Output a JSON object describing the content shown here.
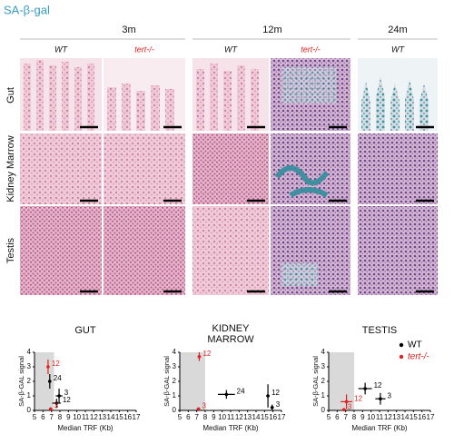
{
  "figure": {
    "title": "SA-β-gal",
    "ages": [
      "3m",
      "12m",
      "24m"
    ],
    "genotypes": [
      "WT",
      "tert-/-",
      "WT",
      "tert-/-",
      "WT"
    ],
    "tissues": [
      "Gut",
      "Kidney Marrow",
      "Testis"
    ]
  },
  "chart_data": [
    {
      "type": "scatter",
      "title": "GUT",
      "x_label": "Median TRF (Kb)",
      "y_label": "SA-β-GAL signal",
      "xlim": [
        5,
        17
      ],
      "xticks": [
        5,
        6,
        7,
        8,
        9,
        10,
        11,
        12,
        13,
        14,
        15,
        16,
        17
      ],
      "ylim": [
        0,
        4
      ],
      "yticks": [
        0,
        1,
        2,
        3,
        4
      ],
      "shade": [
        5,
        7.3
      ],
      "series": [
        {
          "color": "#000000",
          "x": [
            6.8,
            7.9,
            7.6
          ],
          "values": [
            2.0,
            1.0,
            0.5
          ],
          "xerr": [
            0.1,
            0.4,
            0.5
          ],
          "yerr": [
            0.5,
            0.5,
            0.3
          ],
          "point_labels": [
            "24",
            "3",
            "12"
          ]
        },
        {
          "color": "#e02020",
          "x": [
            6.6,
            6.9
          ],
          "values": [
            3.0,
            0.1
          ],
          "xerr": [
            0.1,
            0.2
          ],
          "yerr": [
            0.5,
            0.1
          ],
          "point_labels": [
            "12",
            "3"
          ]
        }
      ]
    },
    {
      "type": "scatter",
      "title": "KIDNEY MARROW",
      "x_label": "Median TRF (Kb)",
      "y_label": "SA-β-GAL signal",
      "xlim": [
        5,
        17
      ],
      "xticks": [
        5,
        6,
        7,
        8,
        9,
        10,
        11,
        12,
        13,
        14,
        15,
        16,
        17
      ],
      "ylim": [
        0,
        4
      ],
      "yticks": [
        0,
        1,
        2,
        3,
        4
      ],
      "shade": [
        5,
        8
      ],
      "series": [
        {
          "color": "#000000",
          "x": [
            10.5,
            15.4,
            15.9
          ],
          "values": [
            1.1,
            1.0,
            0.2
          ],
          "xerr": [
            1.0,
            0.2,
            0.2
          ],
          "yerr": [
            0.3,
            0.8,
            0.2
          ],
          "point_labels": [
            "24",
            "12",
            "3"
          ]
        },
        {
          "color": "#e02020",
          "x": [
            7.3,
            7.2
          ],
          "values": [
            3.7,
            0.1
          ],
          "xerr": [
            0.2,
            0.2
          ],
          "yerr": [
            0.3,
            0.1
          ],
          "point_labels": [
            "12",
            "3"
          ]
        }
      ]
    },
    {
      "type": "scatter",
      "title": "TESTIS",
      "x_label": "Median TRF (Kb)",
      "y_label": "SA-β-GAL signal",
      "xlim": [
        5,
        17
      ],
      "xticks": [
        5,
        6,
        7,
        8,
        9,
        10,
        11,
        12,
        13,
        14,
        15,
        16,
        17
      ],
      "ylim": [
        0,
        4
      ],
      "yticks": [
        0,
        1,
        2,
        3,
        4
      ],
      "shade": [
        5,
        8
      ],
      "series": [
        {
          "name": "WT",
          "color": "#000000",
          "x": [
            9.3,
            11.1
          ],
          "values": [
            1.5,
            0.8
          ],
          "xerr": [
            0.8,
            0.6
          ],
          "yerr": [
            0.4,
            0.4
          ],
          "point_labels": [
            "12",
            "3"
          ]
        },
        {
          "name": "tert-/-",
          "color": "#e02020",
          "x": [
            7.1,
            6.8
          ],
          "values": [
            0.6,
            0.05
          ],
          "xerr": [
            0.7,
            0.2
          ],
          "yerr": [
            0.5,
            0.05
          ],
          "point_labels": [
            "12",
            "3"
          ]
        }
      ]
    }
  ]
}
